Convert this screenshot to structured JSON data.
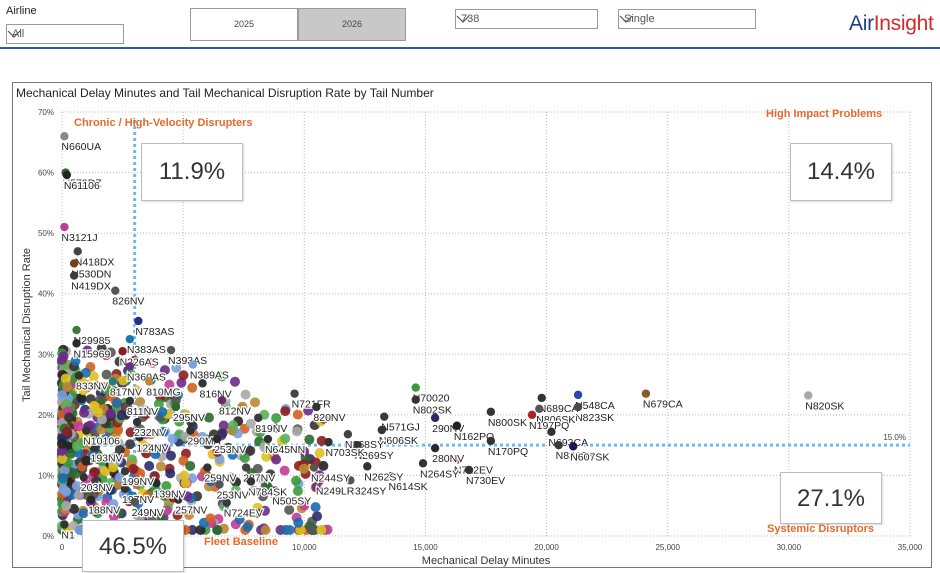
{
  "filters": {
    "airline_label": "Airline",
    "airline_value": "All",
    "year_2025": "2025",
    "year_2026": "2026",
    "aircraft_type": "738",
    "mode": "Single"
  },
  "brand": {
    "air": "Air",
    "insight": "Insight",
    "air_color": "#1f3f8f",
    "insight_color": "#d02a2a"
  },
  "quadrants": {
    "chronic": {
      "title": "Chronic / High-Velocity Disrupters",
      "pct": "11.9%"
    },
    "high_impact": {
      "title": "High Impact Problems",
      "pct": "14.4%"
    },
    "fleet_baseline": {
      "title": "Fleet Baseline",
      "pct": "46.5%"
    },
    "systemic": {
      "title": "Systemic Disruptors",
      "pct": "27.1%"
    }
  },
  "chart_data": {
    "type": "scatter",
    "title": "Mechanical Delay Minutes and Tail Mechanical Disruption Rate by Tail Number",
    "xlabel": "Mechanical Delay Minutes",
    "ylabel": "Tail Mechanical Disruption Rate",
    "xlim": [
      0,
      35000
    ],
    "ylim": [
      0,
      70
    ],
    "x_ticks": [
      0,
      5000,
      10000,
      15000,
      20000,
      25000,
      30000,
      35000
    ],
    "x_tick_labels": [
      "0",
      "",
      "10,000",
      "15,000",
      "20,000",
      "25,000",
      "30,000",
      "35,000"
    ],
    "y_ticks": [
      0,
      10,
      20,
      30,
      40,
      50,
      60,
      70
    ],
    "y_tick_labels": [
      "0%",
      "10%",
      "20%",
      "30%",
      "40%",
      "50%",
      "60%",
      "70%"
    ],
    "reference_lines": {
      "x_threshold": 3000,
      "y_threshold": 15,
      "y_label": "15.0%"
    },
    "grid": true,
    "accent_color": "#e8692c",
    "reference_color": "#6fb8ee",
    "labeled_points": [
      {
        "label": "N660UA",
        "x": 100,
        "y": 66,
        "color": "#8a8a8a"
      },
      {
        "label": "N572DZ",
        "x": 150,
        "y": 60,
        "color": "#2a6a2a"
      },
      {
        "label": "N61106",
        "x": 200,
        "y": 59.6,
        "color": "#222222"
      },
      {
        "label": "N3121J",
        "x": 100,
        "y": 51,
        "color": "#c23b9a"
      },
      {
        "label": "N418DX",
        "x": 650,
        "y": 47,
        "color": "#444444"
      },
      {
        "label": "N530DN",
        "x": 500,
        "y": 45,
        "color": "#7a3e1e"
      },
      {
        "label": "N419DX",
        "x": 500,
        "y": 43,
        "color": "#3a3a3a"
      },
      {
        "label": "826NV",
        "x": 2200,
        "y": 40.5,
        "color": "#555555"
      },
      {
        "label": "N783AS",
        "x": 3150,
        "y": 35.5,
        "color": "#2c2c8a"
      },
      {
        "label": "N29985",
        "x": 600,
        "y": 34,
        "color": "#3a7a3a"
      },
      {
        "label": "N383AS",
        "x": 2800,
        "y": 32.5,
        "color": "#1a7ab0"
      },
      {
        "label": "N393AS",
        "x": 4500,
        "y": 30.7,
        "color": "#555555"
      },
      {
        "label": "N15969",
        "x": 600,
        "y": 31.8,
        "color": "#2a2a2a"
      },
      {
        "label": "N226AS",
        "x": 2500,
        "y": 30.5,
        "color": "#8b1e1e"
      },
      {
        "label": "N360AS",
        "x": 2800,
        "y": 28,
        "color": "#6a2c8a"
      },
      {
        "label": "N389AS",
        "x": 5400,
        "y": 28.3,
        "color": "#7aa0e0"
      },
      {
        "label": "833NV",
        "x": 700,
        "y": 26.5,
        "color": "#333333"
      },
      {
        "label": "817NV",
        "x": 2100,
        "y": 25.5,
        "color": "#2a7a7a"
      },
      {
        "label": "810MG",
        "x": 3600,
        "y": 25.5,
        "color": "#bb8833"
      },
      {
        "label": "816NV",
        "x": 5800,
        "y": 25.2,
        "color": "#333333"
      },
      {
        "label": "N721FR",
        "x": 9600,
        "y": 23.5,
        "color": "#444444"
      },
      {
        "label": "N70020",
        "x": 14600,
        "y": 24.5,
        "color": "#3c9a3c"
      },
      {
        "label": "N802SK",
        "x": 14600,
        "y": 22.5,
        "color": "#333333"
      },
      {
        "label": "N689CA",
        "x": 19800,
        "y": 22.8,
        "color": "#333333"
      },
      {
        "label": "N548CA",
        "x": 21300,
        "y": 23.3,
        "color": "#2a4aa8"
      },
      {
        "label": "N823SK",
        "x": 21300,
        "y": 21.3,
        "color": "#4a4a4a"
      },
      {
        "label": "N679CA",
        "x": 24100,
        "y": 23.5,
        "color": "#8a5a2a"
      },
      {
        "label": "N820SK",
        "x": 30800,
        "y": 23.2,
        "color": "#a8a8a8"
      },
      {
        "label": "N806SK",
        "x": 19700,
        "y": 21,
        "color": "#555555"
      },
      {
        "label": "N800SK",
        "x": 17700,
        "y": 20.5,
        "color": "#333333"
      },
      {
        "label": "N197PQ",
        "x": 19400,
        "y": 20,
        "color": "#aa2222"
      },
      {
        "label": "N571GJ",
        "x": 13300,
        "y": 19.7,
        "color": "#3a3a3a"
      },
      {
        "label": "290NV",
        "x": 15400,
        "y": 19.5,
        "color": "#2a2a6a"
      },
      {
        "label": "N162PQ",
        "x": 16300,
        "y": 18.2,
        "color": "#222222"
      },
      {
        "label": "N693CA",
        "x": 20200,
        "y": 17.2,
        "color": "#333333"
      },
      {
        "label": "N170PQ",
        "x": 17700,
        "y": 15.7,
        "color": "#333333"
      },
      {
        "label": "N830SK",
        "x": 20500,
        "y": 15,
        "color": "#3a3a3a"
      },
      {
        "label": "N607SK",
        "x": 21100,
        "y": 14.8,
        "color": "#1a1a4a"
      },
      {
        "label": "N712EV",
        "x": 16300,
        "y": 12.6,
        "color": "#cc2222"
      },
      {
        "label": "N730EV",
        "x": 16800,
        "y": 10.9,
        "color": "#333333"
      },
      {
        "label": "N264SY",
        "x": 14900,
        "y": 12,
        "color": "#333333"
      },
      {
        "label": "280NV",
        "x": 15400,
        "y": 14.5,
        "color": "#2a2a2a"
      },
      {
        "label": "N614SK",
        "x": 13600,
        "y": 9.9,
        "color": "#333333"
      },
      {
        "label": "N324SY",
        "x": 11900,
        "y": 9.2,
        "color": "#555555"
      },
      {
        "label": "N262SY",
        "x": 12600,
        "y": 11.5,
        "color": "#333333"
      },
      {
        "label": "N606SK",
        "x": 13200,
        "y": 17.5,
        "color": "#333333"
      },
      {
        "label": "N268SY",
        "x": 11800,
        "y": 16.8,
        "color": "#444444"
      },
      {
        "label": "N269SY",
        "x": 12200,
        "y": 15,
        "color": "#333333"
      },
      {
        "label": "N703SK",
        "x": 11000,
        "y": 15.5,
        "color": "#333333"
      },
      {
        "label": "N249LR",
        "x": 10600,
        "y": 9.2,
        "color": "#333333"
      },
      {
        "label": "N244SY",
        "x": 10400,
        "y": 11.3,
        "color": "#555555"
      },
      {
        "label": "N505SY",
        "x": 8800,
        "y": 7.5,
        "color": "#2a2a2a"
      },
      {
        "label": "N724EV",
        "x": 6800,
        "y": 5.5,
        "color": "#3a3a3a"
      },
      {
        "label": "N645NN",
        "x": 8500,
        "y": 16,
        "color": "#333333"
      },
      {
        "label": "819NV",
        "x": 8100,
        "y": 19.5,
        "color": "#3a3a3a"
      },
      {
        "label": "820NV",
        "x": 10500,
        "y": 21.3,
        "color": "#333333"
      },
      {
        "label": "812NV",
        "x": 6600,
        "y": 22.4,
        "color": "#6a2a6a"
      },
      {
        "label": "295NV",
        "x": 4700,
        "y": 21.3,
        "color": "#2a6a2a"
      },
      {
        "label": "811NV",
        "x": 2800,
        "y": 22.3,
        "color": "#333333"
      },
      {
        "label": "290MA",
        "x": 5300,
        "y": 17.4,
        "color": "#333333"
      },
      {
        "label": "253NV",
        "x": 6400,
        "y": 16,
        "color": "#2a2a2a"
      },
      {
        "label": "259NV",
        "x": 6000,
        "y": 11.3,
        "color": "#333333"
      },
      {
        "label": "287NV",
        "x": 7600,
        "y": 11.3,
        "color": "#444444"
      },
      {
        "label": "N784SK",
        "x": 7800,
        "y": 9,
        "color": "#333333"
      },
      {
        "label": "253NV",
        "x": 6500,
        "y": 8.5,
        "color": "#555555"
      },
      {
        "label": "257NV",
        "x": 4800,
        "y": 6,
        "color": "#333333"
      },
      {
        "label": "139NV",
        "x": 3900,
        "y": 8.7,
        "color": "#2a2a2a"
      },
      {
        "label": "197NV",
        "x": 2600,
        "y": 7.8,
        "color": "#333333"
      },
      {
        "label": "199NV",
        "x": 2600,
        "y": 10.7,
        "color": "#3a3a3a"
      },
      {
        "label": "203NV",
        "x": 900,
        "y": 9.7,
        "color": "#333333"
      },
      {
        "label": "188NV",
        "x": 1200,
        "y": 6,
        "color": "#2a2a2a"
      },
      {
        "label": "249NV",
        "x": 3000,
        "y": 5.6,
        "color": "#555555"
      },
      {
        "label": "193NV",
        "x": 1300,
        "y": 14.6,
        "color": "#333333"
      },
      {
        "label": "N10106",
        "x": 1000,
        "y": 17.4,
        "color": "#333333"
      },
      {
        "label": "124NV",
        "x": 3200,
        "y": 16.3,
        "color": "#2a2a2a"
      },
      {
        "label": "232NV",
        "x": 3100,
        "y": 18.8,
        "color": "#333333"
      },
      {
        "label": "N1",
        "x": 100,
        "y": 1.9,
        "color": "#333333"
      }
    ]
  }
}
